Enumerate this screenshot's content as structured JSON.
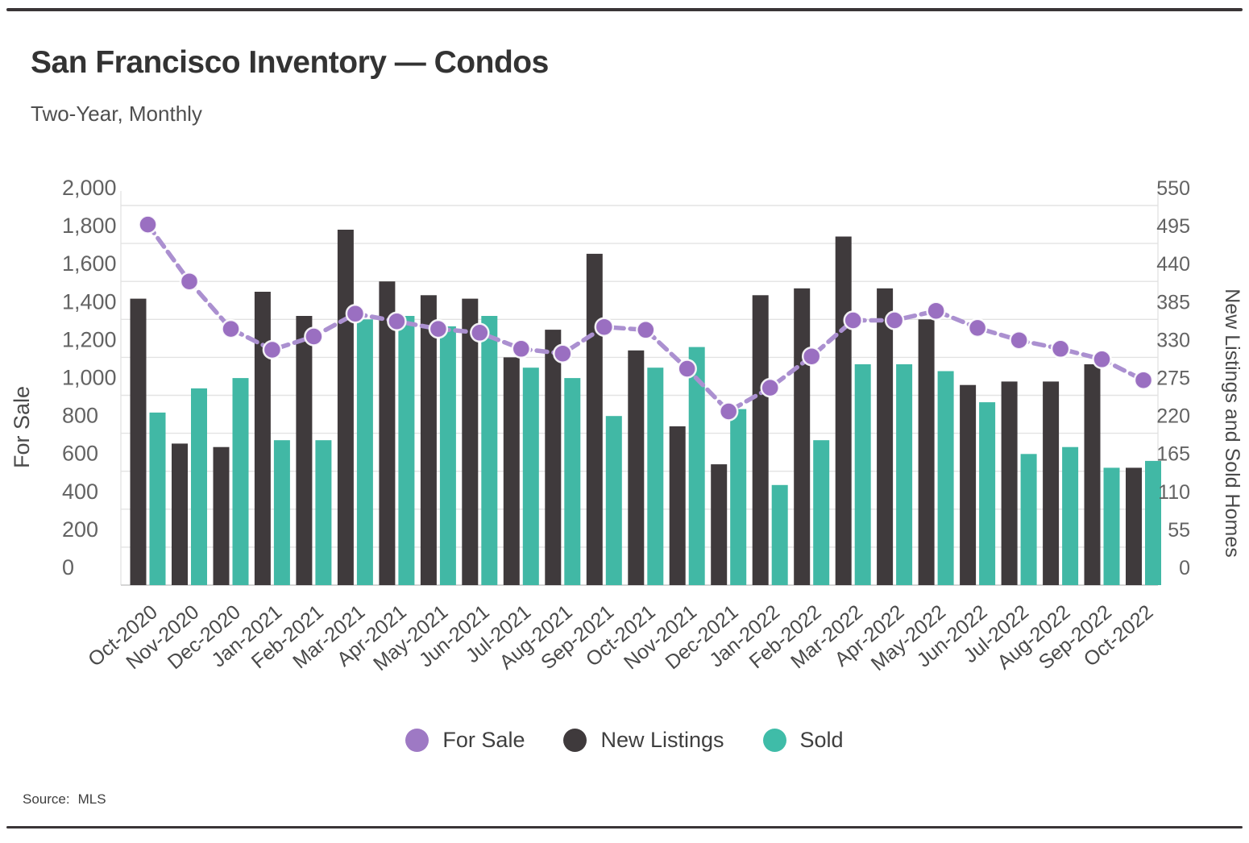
{
  "page": {
    "title": "San Francisco Inventory — Condos",
    "subtitle": "Two-Year, Monthly",
    "source_label": "Source:",
    "source_value": "MLS"
  },
  "colors": {
    "for_sale_line": "#ab90d0",
    "for_sale_point": "#9a6fc1",
    "new_listings_bar": "#3f3a3c",
    "sold_bar": "#41b8a5",
    "gridline": "#e3e3e3",
    "axis_line": "#cccccc",
    "tick_text": "#636363",
    "axis_title_text": "#4a4a4a",
    "x_label_text": "#4a4a4a"
  },
  "legend": [
    {
      "label": "For Sale",
      "color": "#9e79c4"
    },
    {
      "label": "New Listings",
      "color": "#3f3a3c"
    },
    {
      "label": "Sold",
      "color": "#3fbca8"
    }
  ],
  "chart_data": {
    "type": "bar",
    "subtype": "combo-bar-line",
    "title": "San Francisco Inventory — Condos",
    "categories": [
      "Oct-2020",
      "Nov-2020",
      "Dec-2020",
      "Jan-2021",
      "Feb-2021",
      "Mar-2021",
      "Apr-2021",
      "May-2021",
      "Jun-2021",
      "Jul-2021",
      "Aug-2021",
      "Sep-2021",
      "Oct-2021",
      "Nov-2021",
      "Dec-2021",
      "Jan-2022",
      "Feb-2022",
      "Mar-2022",
      "Apr-2022",
      "May-2022",
      "Jun-2022",
      "Jul-2022",
      "Aug-2022",
      "Sep-2022",
      "Oct-2022"
    ],
    "series": [
      {
        "name": "For Sale",
        "type": "line",
        "axis": "left",
        "values": [
          1900,
          1600,
          1350,
          1240,
          1310,
          1430,
          1390,
          1350,
          1330,
          1245,
          1220,
          1360,
          1345,
          1140,
          915,
          1040,
          1205,
          1395,
          1395,
          1445,
          1355,
          1290,
          1245,
          1190,
          1080
        ]
      },
      {
        "name": "New Listings",
        "type": "bar",
        "axis": "right",
        "values": [
          415,
          205,
          200,
          425,
          390,
          515,
          440,
          420,
          415,
          330,
          370,
          480,
          340,
          230,
          175,
          420,
          430,
          505,
          430,
          385,
          290,
          295,
          295,
          320,
          170
        ]
      },
      {
        "name": "Sold",
        "type": "bar",
        "axis": "right",
        "values": [
          250,
          285,
          300,
          210,
          210,
          385,
          390,
          375,
          390,
          315,
          300,
          245,
          315,
          345,
          255,
          145,
          210,
          320,
          320,
          310,
          265,
          190,
          200,
          170,
          180
        ]
      }
    ],
    "left_axis": {
      "title": "For Sale",
      "min": 0,
      "max": 2000,
      "tick_step": 200,
      "tick_labels": [
        "0",
        "200",
        "400",
        "600",
        "800",
        "1,000",
        "1,200",
        "1,400",
        "1,600",
        "1,800",
        "2,000"
      ]
    },
    "right_axis": {
      "title": "New Listings and Sold Homes",
      "min": 0,
      "max": 550,
      "tick_step": 55,
      "tick_labels": [
        "0",
        "55",
        "110",
        "165",
        "220",
        "275",
        "330",
        "385",
        "440",
        "495",
        "550"
      ]
    },
    "grid": true,
    "legend_position": "bottom",
    "line_style": "dashed"
  }
}
